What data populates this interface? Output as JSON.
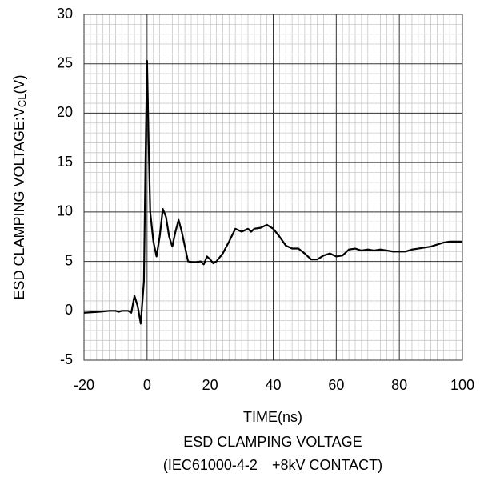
{
  "chart_data": {
    "type": "line",
    "ylabel": {
      "text": "ESD CLAMPING VOLTAGE:V",
      "subscript": "CL",
      "suffix": "(V)"
    },
    "xlabel": "TIME(ns)",
    "caption": [
      "ESD CLAMPING VOLTAGE",
      "(IEC61000-4-2　+8kV CONTACT)"
    ],
    "xlim": [
      -20,
      100
    ],
    "xticks": [
      -20,
      0,
      20,
      40,
      60,
      80,
      100
    ],
    "ylim": [
      -5,
      30
    ],
    "yticks": [
      -5,
      0,
      5,
      10,
      15,
      20,
      25,
      30
    ],
    "grid": true,
    "series": [
      {
        "color": "#000000",
        "x": [
          -20,
          -15,
          -12,
          -10,
          -9,
          -8,
          -6,
          -5,
          -4,
          -3,
          -2,
          -1,
          -0.5,
          0,
          0.5,
          1,
          2,
          3,
          4,
          5,
          6,
          7,
          8,
          9,
          10,
          11,
          12,
          13,
          15,
          17,
          18,
          19,
          20,
          21,
          22,
          24,
          26,
          28,
          30,
          32,
          33,
          34,
          36,
          38,
          40,
          42,
          44,
          46,
          48,
          50,
          52,
          54,
          56,
          58,
          60,
          62,
          64,
          66,
          68,
          70,
          72,
          74,
          76,
          78,
          80,
          82,
          84,
          86,
          88,
          90,
          92,
          94,
          96,
          98,
          100
        ],
        "values": [
          -0.2,
          -0.1,
          0,
          0,
          -0.1,
          0,
          0,
          -0.2,
          1.5,
          0.5,
          -1.3,
          3,
          15,
          25.3,
          17,
          10,
          7,
          5.5,
          7.5,
          10.3,
          9.5,
          7.5,
          6.5,
          8,
          9.2,
          8,
          6.5,
          5,
          4.9,
          5,
          4.7,
          5.5,
          5.2,
          4.8,
          5,
          5.8,
          7,
          8.3,
          8,
          8.3,
          8,
          8.3,
          8.4,
          8.7,
          8.3,
          7.5,
          6.6,
          6.3,
          6.3,
          5.8,
          5.2,
          5.2,
          5.6,
          5.8,
          5.5,
          5.6,
          6.2,
          6.3,
          6.1,
          6.2,
          6.1,
          6.2,
          6.1,
          6,
          6,
          6,
          6.2,
          6.3,
          6.4,
          6.5,
          6.7,
          6.9,
          7,
          7,
          7
        ]
      }
    ]
  }
}
